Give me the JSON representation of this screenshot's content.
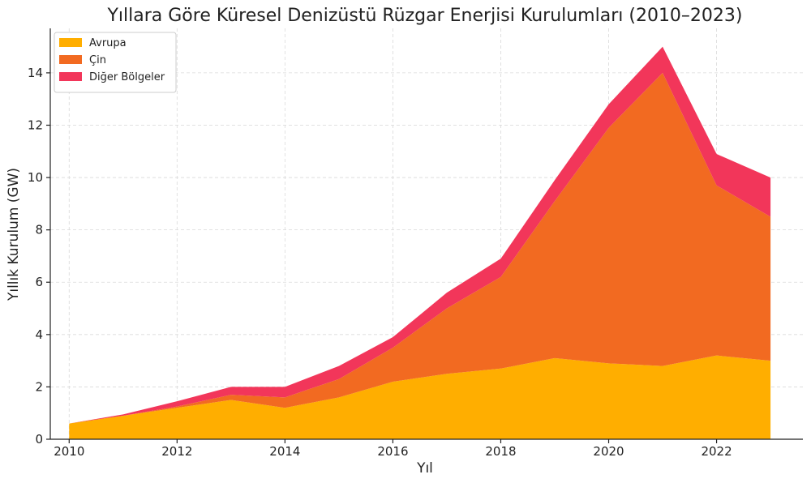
{
  "chart_data": {
    "type": "area",
    "stacked": true,
    "title": "Yıllara Göre Küresel Denizüstü Rüzgar Enerjisi Kurulumları (2010–2023)",
    "xlabel": "Yıl",
    "ylabel": "Yıllık Kurulum (GW)",
    "x": [
      2010,
      2011,
      2012,
      2013,
      2014,
      2015,
      2016,
      2017,
      2018,
      2019,
      2020,
      2021,
      2022,
      2023
    ],
    "series": [
      {
        "name": "Avrupa",
        "color": "#FFAE00",
        "values": [
          0.6,
          0.9,
          1.2,
          1.5,
          1.2,
          1.6,
          2.2,
          2.5,
          2.7,
          3.1,
          2.9,
          2.8,
          3.2,
          3.0
        ]
      },
      {
        "name": "Çin",
        "color": "#F26A21",
        "values": [
          0.0,
          0.0,
          0.05,
          0.2,
          0.4,
          0.7,
          1.3,
          2.5,
          3.5,
          6.0,
          9.0,
          11.2,
          6.5,
          5.5
        ]
      },
      {
        "name": "Diğer Bölgeler",
        "color": "#F2365A",
        "values": [
          0.0,
          0.05,
          0.2,
          0.3,
          0.4,
          0.5,
          0.4,
          0.6,
          0.7,
          0.8,
          0.9,
          1.0,
          1.2,
          1.5
        ]
      }
    ],
    "xlim": [
      2009.65,
      2023.6
    ],
    "ylim": [
      0,
      15.7
    ],
    "xticks": [
      2010,
      2012,
      2014,
      2016,
      2018,
      2020,
      2022
    ],
    "yticks": [
      0,
      2,
      4,
      6,
      8,
      10,
      12,
      14
    ],
    "grid": true,
    "legend_position": "top-left"
  }
}
